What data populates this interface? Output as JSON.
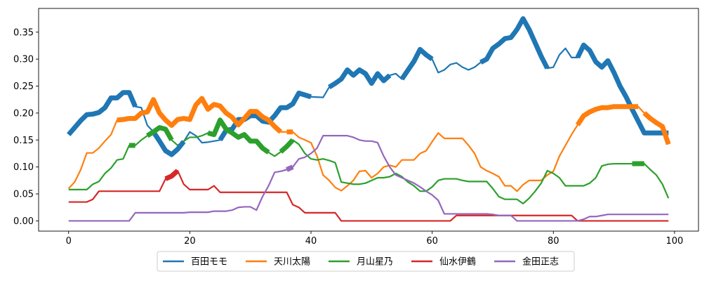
{
  "chart_data": {
    "type": "line",
    "title": "",
    "xlabel": "",
    "ylabel": "",
    "xlim": [
      -4.95,
      103.95
    ],
    "ylim": [
      -0.019,
      0.394
    ],
    "xticks": [
      0,
      20,
      40,
      60,
      80,
      100
    ],
    "xtick_labels": [
      "0",
      "20",
      "40",
      "60",
      "80",
      "100"
    ],
    "yticks": [
      0.0,
      0.05,
      0.1,
      0.15,
      0.2,
      0.25,
      0.3,
      0.35
    ],
    "ytick_labels": [
      "0.00",
      "0.05",
      "0.10",
      "0.15",
      "0.20",
      "0.25",
      "0.30",
      "0.35"
    ],
    "grid": false,
    "legend_position": "bottom-center",
    "series": [
      {
        "name": "百田モモ",
        "color": "#1f77b4",
        "x": [
          0,
          2,
          3,
          4,
          5,
          6,
          7,
          8,
          9,
          10,
          11,
          12,
          13,
          14,
          15,
          16,
          17,
          18,
          19,
          20,
          21,
          22,
          23,
          24,
          25,
          26,
          27,
          28,
          29,
          30,
          31,
          32,
          33,
          34,
          35,
          36,
          37,
          38,
          40,
          42,
          43,
          44,
          45,
          46,
          47,
          48,
          49,
          50,
          51,
          52,
          53,
          54,
          55,
          57,
          58,
          59,
          60,
          61,
          62,
          63,
          64,
          65,
          66,
          67,
          68,
          69,
          70,
          71,
          72,
          73,
          74,
          75,
          76,
          77,
          78,
          79,
          80,
          81,
          82,
          83,
          84,
          85,
          86,
          87,
          88,
          89,
          90,
          91,
          92,
          93,
          94,
          95,
          96,
          97,
          98,
          99
        ],
        "y": [
          0.16,
          0.186,
          0.197,
          0.198,
          0.201,
          0.21,
          0.228,
          0.228,
          0.238,
          0.238,
          0.212,
          0.21,
          0.177,
          0.165,
          0.148,
          0.13,
          0.123,
          0.133,
          0.147,
          0.165,
          0.158,
          0.145,
          0.146,
          0.148,
          0.15,
          0.168,
          0.17,
          0.188,
          0.188,
          0.195,
          0.195,
          0.185,
          0.183,
          0.195,
          0.21,
          0.21,
          0.217,
          0.237,
          0.23,
          0.229,
          0.248,
          0.255,
          0.263,
          0.28,
          0.27,
          0.28,
          0.273,
          0.255,
          0.273,
          0.26,
          0.27,
          0.273,
          0.263,
          0.296,
          0.318,
          0.308,
          0.3,
          0.275,
          0.28,
          0.29,
          0.293,
          0.285,
          0.28,
          0.285,
          0.294,
          0.3,
          0.32,
          0.328,
          0.338,
          0.34,
          0.355,
          0.375,
          0.355,
          0.33,
          0.305,
          0.283,
          0.285,
          0.308,
          0.32,
          0.303,
          0.303,
          0.326,
          0.316,
          0.295,
          0.285,
          0.297,
          0.275,
          0.25,
          0.23,
          0.207,
          0.185,
          0.163,
          0.163,
          0.163,
          0.163,
          0.163
        ]
      },
      {
        "name": "天川太陽",
        "color": "#ff7f0e",
        "x": [
          0,
          1,
          2,
          3,
          4,
          5,
          6,
          7,
          8,
          9,
          10,
          11,
          12,
          13,
          14,
          15,
          16,
          17,
          18,
          19,
          20,
          21,
          22,
          23,
          24,
          25,
          26,
          27,
          28,
          29,
          30,
          31,
          32,
          33,
          34,
          35,
          36,
          37,
          38,
          39,
          40,
          41,
          42,
          43,
          44,
          45,
          46,
          47,
          48,
          49,
          50,
          51,
          52,
          53,
          54,
          55,
          56,
          57,
          58,
          59,
          60,
          61,
          62,
          63,
          64,
          65,
          66,
          67,
          68,
          69,
          70,
          71,
          72,
          73,
          74,
          75,
          76,
          77,
          78,
          79,
          80,
          81,
          82,
          83,
          84,
          85,
          86,
          87,
          88,
          89,
          90,
          91,
          92,
          93,
          94,
          95,
          96,
          97,
          98,
          99
        ],
        "y": [
          0.06,
          0.072,
          0.095,
          0.126,
          0.126,
          0.135,
          0.148,
          0.16,
          0.187,
          0.188,
          0.19,
          0.19,
          0.2,
          0.202,
          0.225,
          0.2,
          0.187,
          0.177,
          0.188,
          0.19,
          0.188,
          0.215,
          0.227,
          0.207,
          0.216,
          0.213,
          0.2,
          0.192,
          0.178,
          0.19,
          0.203,
          0.203,
          0.193,
          0.187,
          0.175,
          0.165,
          0.165,
          0.165,
          0.155,
          0.15,
          0.145,
          0.12,
          0.085,
          0.075,
          0.062,
          0.056,
          0.065,
          0.075,
          0.092,
          0.093,
          0.08,
          0.088,
          0.1,
          0.103,
          0.1,
          0.113,
          0.113,
          0.113,
          0.125,
          0.13,
          0.147,
          0.163,
          0.153,
          0.153,
          0.153,
          0.153,
          0.14,
          0.125,
          0.1,
          0.093,
          0.088,
          0.082,
          0.065,
          0.065,
          0.055,
          0.067,
          0.075,
          0.075,
          0.075,
          0.085,
          0.092,
          0.12,
          0.14,
          0.16,
          0.178,
          0.195,
          0.202,
          0.207,
          0.21,
          0.21,
          0.212,
          0.212,
          0.212,
          0.212,
          0.212,
          0.2,
          0.19,
          0.182,
          0.175,
          0.142
        ]
      },
      {
        "name": "月山星乃",
        "color": "#2ca02c",
        "x": [
          0,
          1,
          2,
          3,
          4,
          5,
          6,
          7,
          8,
          9,
          10,
          11,
          12,
          13,
          14,
          15,
          16,
          17,
          18,
          19,
          20,
          21,
          22,
          23,
          24,
          25,
          26,
          27,
          28,
          29,
          30,
          31,
          32,
          33,
          34,
          35,
          36,
          37,
          38,
          39,
          40,
          41,
          42,
          43,
          44,
          45,
          46,
          47,
          48,
          49,
          50,
          51,
          52,
          53,
          54,
          55,
          56,
          57,
          58,
          59,
          60,
          61,
          62,
          63,
          64,
          65,
          66,
          67,
          68,
          69,
          70,
          71,
          72,
          73,
          74,
          75,
          76,
          77,
          78,
          79,
          80,
          81,
          82,
          83,
          84,
          85,
          86,
          87,
          88,
          89,
          90,
          91,
          92,
          93,
          94,
          95,
          96,
          97,
          98,
          99
        ],
        "y": [
          0.058,
          0.058,
          0.058,
          0.058,
          0.068,
          0.073,
          0.088,
          0.098,
          0.113,
          0.115,
          0.14,
          0.14,
          0.15,
          0.158,
          0.165,
          0.173,
          0.17,
          0.15,
          0.14,
          0.148,
          0.155,
          0.155,
          0.158,
          0.163,
          0.16,
          0.187,
          0.17,
          0.163,
          0.155,
          0.16,
          0.148,
          0.148,
          0.135,
          0.127,
          0.12,
          0.128,
          0.138,
          0.15,
          0.142,
          0.125,
          0.115,
          0.113,
          0.115,
          0.112,
          0.108,
          0.072,
          0.07,
          0.068,
          0.068,
          0.07,
          0.075,
          0.08,
          0.08,
          0.082,
          0.088,
          0.082,
          0.072,
          0.065,
          0.055,
          0.055,
          0.063,
          0.075,
          0.078,
          0.078,
          0.078,
          0.075,
          0.073,
          0.073,
          0.073,
          0.073,
          0.06,
          0.045,
          0.04,
          0.04,
          0.04,
          0.032,
          0.042,
          0.055,
          0.07,
          0.093,
          0.088,
          0.08,
          0.065,
          0.065,
          0.065,
          0.065,
          0.07,
          0.08,
          0.102,
          0.105,
          0.106,
          0.106,
          0.106,
          0.106,
          0.106,
          0.106,
          0.095,
          0.085,
          0.068,
          0.042
        ]
      },
      {
        "name": "仙水伊鶴",
        "color": "#d62728",
        "x": [
          0,
          1,
          2,
          3,
          4,
          5,
          6,
          7,
          8,
          9,
          10,
          11,
          12,
          13,
          14,
          15,
          16,
          17,
          18,
          19,
          20,
          21,
          22,
          23,
          24,
          25,
          26,
          27,
          28,
          29,
          30,
          31,
          32,
          33,
          34,
          35,
          36,
          37,
          38,
          39,
          40,
          41,
          42,
          43,
          44,
          45,
          46,
          47,
          48,
          49,
          50,
          51,
          52,
          53,
          54,
          55,
          56,
          57,
          58,
          59,
          60,
          61,
          62,
          63,
          64,
          65,
          66,
          67,
          68,
          69,
          70,
          71,
          72,
          73,
          74,
          75,
          76,
          77,
          78,
          79,
          80,
          81,
          82,
          83,
          84,
          85,
          86,
          87,
          88,
          89,
          90,
          91,
          92,
          93,
          94,
          95,
          96,
          97,
          98,
          99
        ],
        "y": [
          0.035,
          0.035,
          0.035,
          0.035,
          0.04,
          0.055,
          0.055,
          0.055,
          0.055,
          0.055,
          0.055,
          0.055,
          0.055,
          0.055,
          0.055,
          0.055,
          0.078,
          0.083,
          0.093,
          0.068,
          0.058,
          0.058,
          0.058,
          0.058,
          0.065,
          0.053,
          0.053,
          0.053,
          0.053,
          0.053,
          0.053,
          0.053,
          0.053,
          0.053,
          0.053,
          0.053,
          0.053,
          0.03,
          0.025,
          0.015,
          0.015,
          0.015,
          0.015,
          0.015,
          0.015,
          0.0,
          0.0,
          0.0,
          0.0,
          0.0,
          0.0,
          0.0,
          0.0,
          0.0,
          0.0,
          0.0,
          0.0,
          0.0,
          0.0,
          0.0,
          0.0,
          0.0,
          0.0,
          0.0,
          0.01,
          0.01,
          0.01,
          0.01,
          0.01,
          0.01,
          0.01,
          0.01,
          0.01,
          0.01,
          0.01,
          0.01,
          0.01,
          0.01,
          0.01,
          0.01,
          0.01,
          0.01,
          0.01,
          0.01,
          0.0,
          0.0,
          0.0,
          0.0,
          0.0,
          0.0,
          0.0,
          0.0,
          0.0,
          0.0,
          0.0,
          0.0,
          0.0,
          0.0,
          0.0,
          0.0
        ]
      },
      {
        "name": "金田正志",
        "color": "#9467bd",
        "x": [
          0,
          1,
          2,
          3,
          4,
          5,
          6,
          7,
          8,
          9,
          10,
          11,
          12,
          13,
          14,
          15,
          16,
          17,
          18,
          19,
          20,
          21,
          22,
          23,
          24,
          25,
          26,
          27,
          28,
          29,
          30,
          31,
          32,
          33,
          34,
          35,
          36,
          37,
          38,
          39,
          40,
          41,
          42,
          43,
          44,
          45,
          46,
          47,
          48,
          49,
          50,
          51,
          52,
          53,
          54,
          55,
          56,
          57,
          58,
          59,
          60,
          61,
          62,
          63,
          64,
          65,
          66,
          67,
          68,
          69,
          70,
          71,
          72,
          73,
          74,
          75,
          76,
          77,
          78,
          79,
          80,
          81,
          82,
          83,
          84,
          85,
          86,
          87,
          88,
          89,
          90,
          91,
          92,
          93,
          94,
          95,
          96,
          97,
          98,
          99
        ],
        "y": [
          0.0,
          0.0,
          0.0,
          0.0,
          0.0,
          0.0,
          0.0,
          0.0,
          0.0,
          0.0,
          0.0,
          0.015,
          0.015,
          0.015,
          0.015,
          0.015,
          0.015,
          0.015,
          0.015,
          0.015,
          0.016,
          0.016,
          0.016,
          0.016,
          0.018,
          0.018,
          0.018,
          0.02,
          0.025,
          0.026,
          0.026,
          0.02,
          0.045,
          0.065,
          0.09,
          0.092,
          0.095,
          0.1,
          0.115,
          0.118,
          0.125,
          0.135,
          0.158,
          0.158,
          0.158,
          0.158,
          0.158,
          0.155,
          0.15,
          0.148,
          0.148,
          0.145,
          0.12,
          0.1,
          0.085,
          0.08,
          0.075,
          0.07,
          0.063,
          0.055,
          0.048,
          0.038,
          0.013,
          0.013,
          0.013,
          0.013,
          0.013,
          0.013,
          0.013,
          0.013,
          0.012,
          0.01,
          0.01,
          0.01,
          0.0,
          0.0,
          0.0,
          0.0,
          0.0,
          0.0,
          0.0,
          0.0,
          0.0,
          0.0,
          0.0,
          0.003,
          0.008,
          0.008,
          0.01,
          0.012,
          0.012,
          0.012,
          0.012,
          0.012,
          0.012,
          0.012,
          0.012,
          0.012,
          0.012,
          0.012
        ]
      }
    ],
    "highlights": [
      {
        "series": 0,
        "ranges": [
          [
            0,
            11
          ],
          [
            14,
            19
          ],
          [
            25,
            41
          ],
          [
            43,
            53
          ],
          [
            55,
            60
          ],
          [
            68,
            79
          ],
          [
            84,
            99
          ]
        ]
      },
      {
        "series": 1,
        "ranges": [
          [
            8,
            35
          ],
          [
            36,
            37
          ],
          [
            84,
            94
          ],
          [
            95,
            99
          ]
        ]
      },
      {
        "series": 2,
        "ranges": [
          [
            10,
            11
          ],
          [
            13,
            17
          ],
          [
            23,
            33
          ],
          [
            35,
            37
          ],
          [
            93,
            95
          ]
        ]
      },
      {
        "series": 3,
        "ranges": [
          [
            16,
            18
          ]
        ]
      },
      {
        "series": 4,
        "ranges": [
          [
            36,
            37
          ]
        ]
      }
    ]
  }
}
